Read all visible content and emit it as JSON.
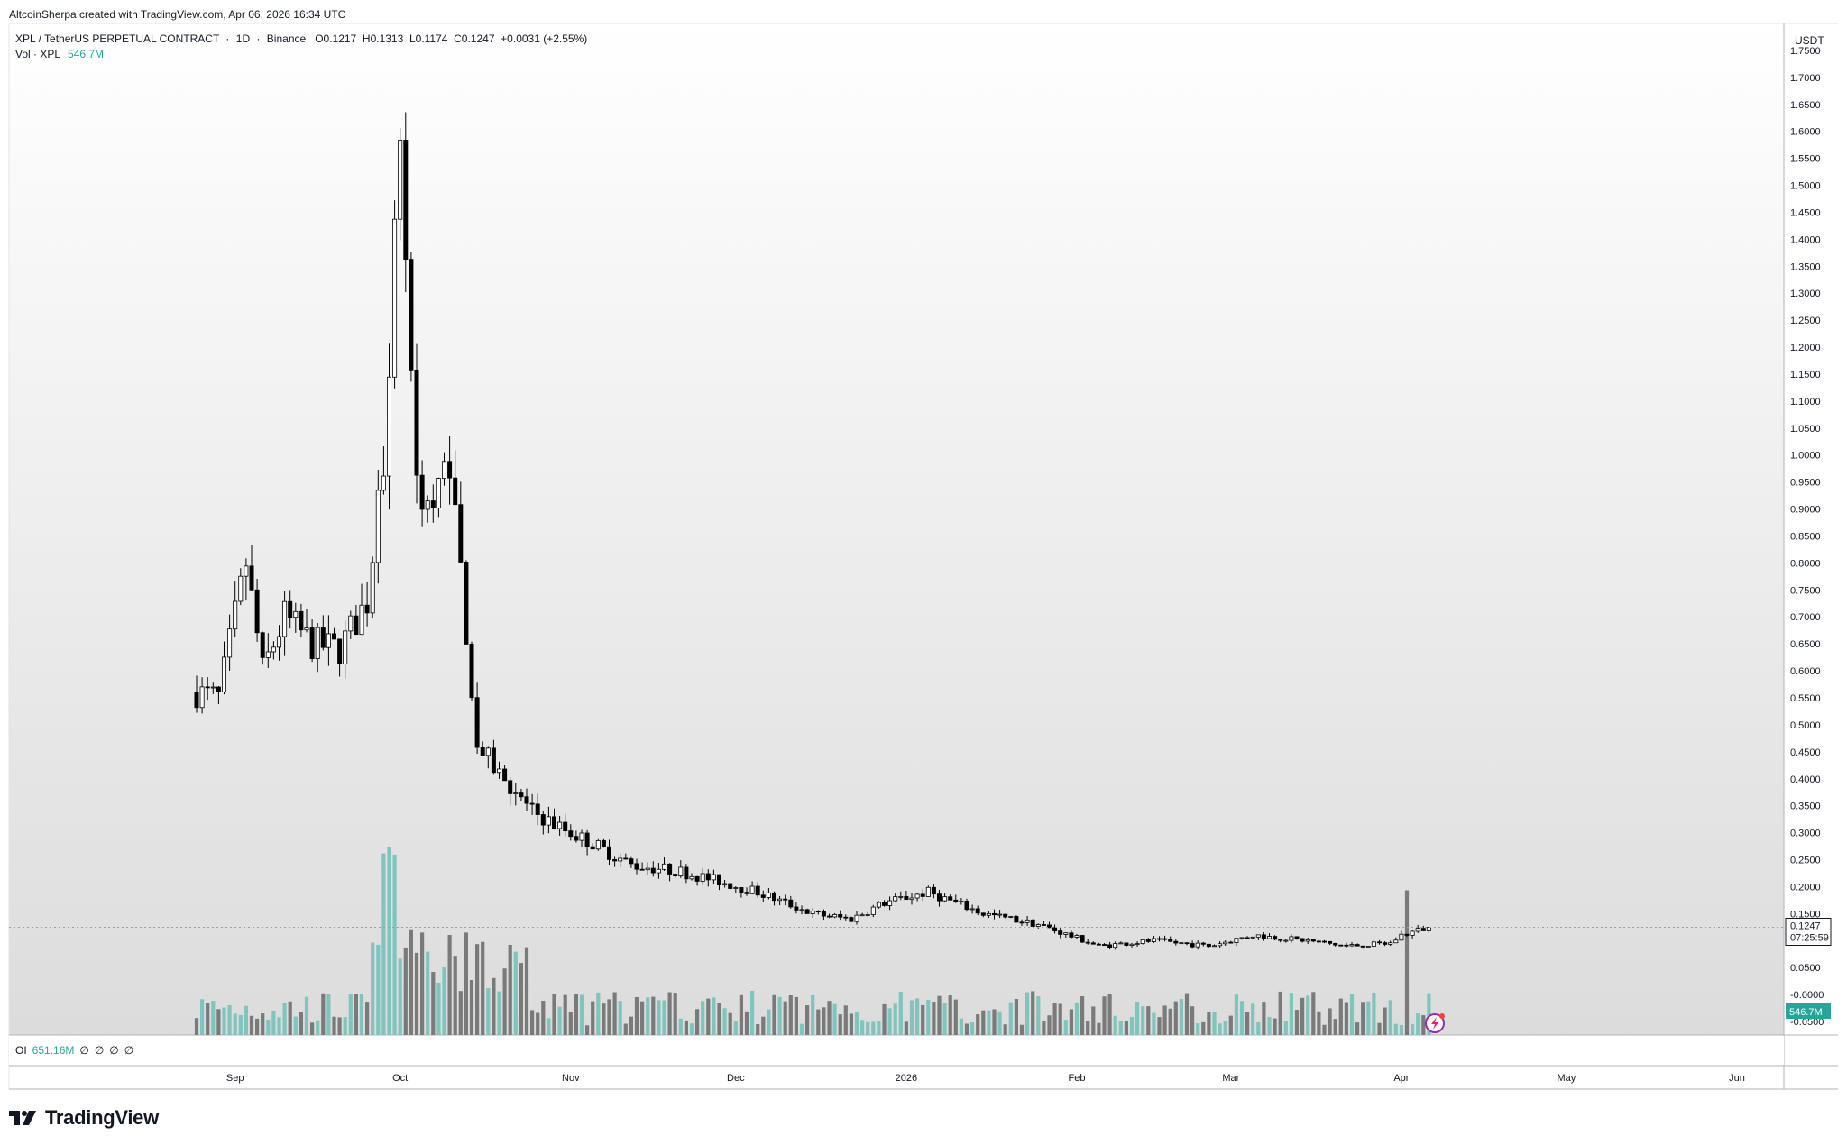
{
  "header": {
    "attribution": "AltcoinSherpa created with TradingView.com, Apr 06, 2026 16:34 UTC"
  },
  "legend": {
    "symbol": "XPL / TetherUS PERPETUAL CONTRACT",
    "interval": "1D",
    "exchange": "Binance",
    "o_label": "O",
    "o_value": "0.1217",
    "h_label": "H",
    "h_value": "0.1313",
    "l_label": "L",
    "l_value": "0.1174",
    "c_label": "C",
    "c_value": "0.1247",
    "change": "+0.0031 (+2.55%)",
    "vol_label": "Vol · XPL",
    "vol_value": "546.7M"
  },
  "oi_pane": {
    "label": "OI",
    "value": "651.16M",
    "placeholders": [
      "∅",
      "∅",
      "∅",
      "∅"
    ]
  },
  "price_axis": {
    "currency": "USDT",
    "current_price": "0.1247",
    "countdown": "07:25:59",
    "volume_badge": "546.7M"
  },
  "branding": {
    "name": "TradingView"
  },
  "colors": {
    "up": "#ffffff",
    "down": "#000000",
    "vol_up": "#7fc5bd",
    "vol_down": "#7a7a7a",
    "accent": "#26a69a",
    "flash_icon": "#9c27b0"
  },
  "chart_data": {
    "type": "candlestick",
    "title": "XPL / TetherUS PERPETUAL CONTRACT · 1D · Binance",
    "y_ticks": [
      "1.7500",
      "1.7000",
      "1.6500",
      "1.6000",
      "1.5500",
      "1.5000",
      "1.4500",
      "1.4000",
      "1.3500",
      "1.3000",
      "1.2500",
      "1.2000",
      "1.1500",
      "1.1000",
      "1.0500",
      "1.0000",
      "0.9500",
      "0.9000",
      "0.8500",
      "0.8000",
      "0.7500",
      "0.7000",
      "0.6500",
      "0.6000",
      "0.5500",
      "0.5000",
      "0.4500",
      "0.4000",
      "0.3500",
      "0.3000",
      "0.2500",
      "0.2000",
      "0.1500",
      "0.1000",
      "0.0500",
      "-0.0000",
      "-0.0500"
    ],
    "x_labels": [
      "Sep",
      "Oct",
      "Nov",
      "Dec",
      "2026",
      "Feb",
      "Mar",
      "Apr",
      "May",
      "Jun"
    ],
    "ylim": [
      -0.075,
      1.8
    ],
    "first_date": "2025-08-25",
    "last_date": "2026-04-06",
    "last_close": 0.1247,
    "volume_max": 1020000000.0,
    "series": [
      {
        "name": "XPL daily close",
        "dates": [
          "2025-08-25",
          "2025-08-29",
          "2025-09-03",
          "2025-09-06",
          "2025-09-10",
          "2025-09-15",
          "2025-09-20",
          "2025-09-25",
          "2025-09-28",
          "2025-10-01",
          "2025-10-04",
          "2025-10-07",
          "2025-10-10",
          "2025-10-15",
          "2025-10-20",
          "2025-10-25",
          "2025-10-30",
          "2025-11-05",
          "2025-11-12",
          "2025-11-20",
          "2025-11-28",
          "2025-12-05",
          "2025-12-15",
          "2025-12-22",
          "2025-12-28",
          "2026-01-05",
          "2026-01-15",
          "2026-01-25",
          "2026-02-05",
          "2026-02-15",
          "2026-02-25",
          "2026-03-05",
          "2026-03-15",
          "2026-03-22",
          "2026-03-30",
          "2026-04-01",
          "2026-04-06"
        ],
        "values": [
          0.56,
          0.55,
          0.8,
          0.6,
          0.7,
          0.65,
          0.64,
          0.73,
          1.0,
          1.6,
          0.95,
          0.9,
          1.0,
          0.46,
          0.4,
          0.34,
          0.31,
          0.28,
          0.24,
          0.23,
          0.21,
          0.19,
          0.15,
          0.14,
          0.17,
          0.19,
          0.15,
          0.13,
          0.09,
          0.1,
          0.09,
          0.11,
          0.1,
          0.09,
          0.095,
          0.11,
          0.1247
        ]
      }
    ]
  }
}
